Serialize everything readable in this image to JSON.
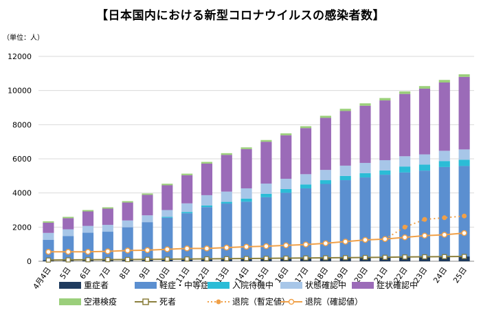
{
  "chart_data": {
    "type": "bar",
    "title": "【日本国内における新型コロナウイルスの感染者数】",
    "unit_label": "（単位：人）",
    "xlabel": "",
    "ylabel": "",
    "ylim": [
      0,
      12000
    ],
    "yticks": [
      "0",
      "2000",
      "4000",
      "6000",
      "8000",
      "10000",
      "12000"
    ],
    "ytick_values": [
      0,
      2000,
      4000,
      6000,
      8000,
      10000,
      12000
    ],
    "grid": true,
    "categories": [
      "4月4日",
      "5日",
      "6日",
      "7日",
      "8日",
      "9日",
      "10日",
      "11日",
      "12日",
      "13日",
      "14日",
      "15日",
      "16日",
      "17日",
      "18日",
      "19日",
      "20日",
      "21日",
      "22日",
      "23日",
      "24日",
      "25日"
    ],
    "stacked_series": [
      {
        "name": "重症者",
        "color": "#1f3b5e",
        "values": [
          60,
          70,
          70,
          80,
          90,
          90,
          100,
          110,
          120,
          130,
          140,
          150,
          160,
          170,
          180,
          200,
          210,
          220,
          250,
          260,
          270,
          280
        ]
      },
      {
        "name": "軽症・中等症",
        "color": "#5b8fd0",
        "values": [
          1200,
          1400,
          1600,
          1650,
          1900,
          2200,
          2450,
          2700,
          3050,
          3250,
          3350,
          3600,
          3850,
          4100,
          4350,
          4550,
          4700,
          4850,
          4950,
          5050,
          5250,
          5300
        ]
      },
      {
        "name": "入院待機中",
        "color": "#2bbcd6",
        "values": [
          0,
          0,
          0,
          0,
          0,
          0,
          50,
          80,
          100,
          100,
          180,
          200,
          220,
          230,
          220,
          250,
          250,
          250,
          350,
          350,
          350,
          370
        ]
      },
      {
        "name": "状態確認中",
        "color": "#a7c6e8",
        "values": [
          400,
          400,
          400,
          400,
          400,
          400,
          400,
          500,
          600,
          600,
          600,
          600,
          600,
          600,
          600,
          600,
          600,
          600,
          600,
          600,
          600,
          600
        ]
      },
      {
        "name": "症状確認中",
        "color": "#9b6bb8",
        "values": [
          600,
          650,
          850,
          950,
          1050,
          1200,
          1450,
          1650,
          1850,
          2150,
          2300,
          2450,
          2550,
          2700,
          3050,
          3200,
          3350,
          3500,
          3650,
          3850,
          4000,
          4250
        ]
      },
      {
        "name": "空港検疫",
        "color": "#9bcf7b",
        "values": [
          80,
          80,
          80,
          80,
          80,
          80,
          90,
          90,
          100,
          100,
          100,
          100,
          110,
          110,
          120,
          130,
          140,
          140,
          150,
          150,
          150,
          150
        ]
      }
    ],
    "line_series": [
      {
        "name": "死者",
        "color": "#8a7f3c",
        "marker": "square",
        "values": [
          70,
          80,
          90,
          95,
          100,
          110,
          120,
          130,
          140,
          150,
          160,
          170,
          180,
          190,
          200,
          210,
          220,
          230,
          250,
          260,
          270,
          280
        ]
      },
      {
        "name": "退院（暫定値）",
        "color": "#f0a048",
        "style": "dotted",
        "x_start": 17,
        "values": [
          null,
          null,
          null,
          null,
          null,
          null,
          null,
          null,
          null,
          null,
          null,
          null,
          null,
          null,
          null,
          null,
          null,
          1300,
          2000,
          2450,
          2550,
          2650
        ]
      },
      {
        "name": "退院（確認値）",
        "color": "#f0a048",
        "style": "solid",
        "values": [
          550,
          550,
          550,
          580,
          630,
          650,
          700,
          750,
          750,
          800,
          850,
          880,
          930,
          980,
          1050,
          1150,
          1250,
          1300,
          1400,
          1500,
          1550,
          1650
        ]
      }
    ]
  }
}
